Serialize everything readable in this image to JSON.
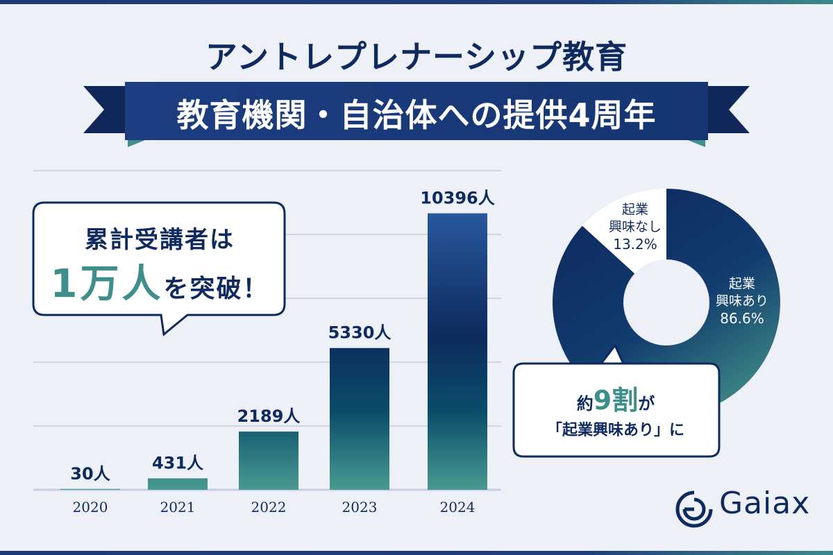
{
  "header": {
    "title": "アントレプレナーシップ教育",
    "banner": "教育機関・自治体への提供4周年"
  },
  "callout": {
    "line1": "累計受講者は",
    "highlight": "1万人",
    "suffix": "を突破！"
  },
  "pie_callout": {
    "prefix": "約",
    "highlight": "9割",
    "suffix": "が",
    "line2": "「起業興味あり」に"
  },
  "brand": {
    "name": "Gaiax"
  },
  "colors": {
    "navy": "#0f2a5e",
    "teal": "#3e8e8c",
    "background": "#eef0f7"
  },
  "chart_data": [
    {
      "type": "bar",
      "categories": [
        "2020",
        "2021",
        "2022",
        "2023",
        "2024"
      ],
      "values": [
        30,
        431,
        2189,
        5330,
        10396
      ],
      "data_labels": [
        "30人",
        "431人",
        "2189人",
        "5330人",
        "10396人"
      ],
      "unit": "人",
      "ylim": [
        0,
        12000
      ],
      "grid": true
    },
    {
      "type": "pie",
      "labels": [
        "起業\n興味あり",
        "起業\n興味なし"
      ],
      "values": [
        86.6,
        13.2
      ],
      "value_labels": [
        "86.6%",
        "13.2%"
      ],
      "donut": true
    }
  ]
}
